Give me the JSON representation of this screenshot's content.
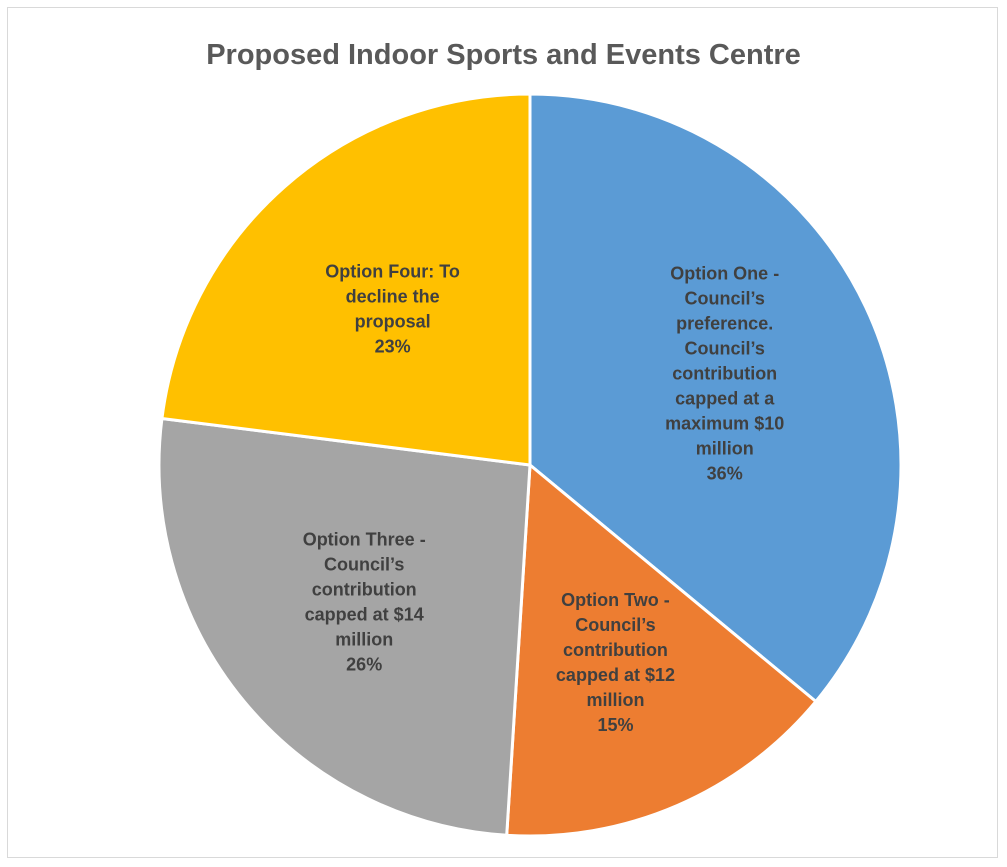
{
  "chart_data": {
    "type": "pie",
    "title": "Proposed Indoor Sports and Events Centre",
    "slices": [
      {
        "label": "Option One - Council’s preference. Council’s contribution capped at a maximum $10 million",
        "label_lines": [
          "Option One -",
          "Council’s",
          "preference.",
          "Council’s",
          "contribution",
          "capped at a",
          "maximum $10",
          "million"
        ],
        "value": 36,
        "value_label": "36%",
        "color": "#5b9bd5"
      },
      {
        "label": "Option Two - Council’s contribution capped at $12 million",
        "label_lines": [
          "Option Two -",
          "Council’s",
          "contribution",
          "capped at $12",
          "million"
        ],
        "value": 15,
        "value_label": "15%",
        "color": "#ed7d31"
      },
      {
        "label": "Option Three - Council’s contribution capped at $14 million",
        "label_lines": [
          "Option Three -",
          "Council’s",
          "contribution",
          "capped at $14",
          "million"
        ],
        "value": 26,
        "value_label": "26%",
        "color": "#a5a5a5"
      },
      {
        "label": "Option Four: To decline the proposal",
        "label_lines": [
          "Option Four: To",
          "decline the",
          "proposal"
        ],
        "value": 23,
        "value_label": "23%",
        "color": "#ffc000"
      }
    ],
    "start_angle": "12 o'clock",
    "direction": "clockwise",
    "legend": "none"
  }
}
